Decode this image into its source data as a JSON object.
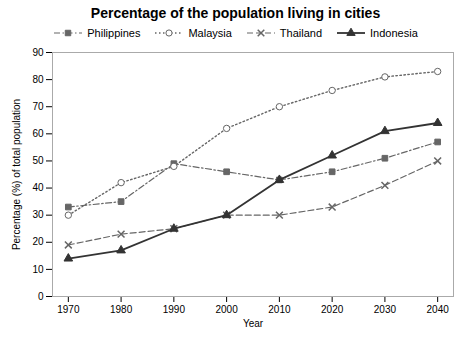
{
  "chart_data": {
    "type": "line",
    "title": "Percentage of the population living in cities",
    "xlabel": "Year",
    "ylabel": "Percentage (%) of total population",
    "x": [
      1970,
      1980,
      1990,
      2000,
      2010,
      2020,
      2030,
      2040
    ],
    "series": [
      {
        "name": "Philippines",
        "color": "#666666",
        "marker": "square",
        "line_style": "dashdot",
        "values": [
          33,
          35,
          49,
          46,
          43,
          46,
          51,
          57
        ]
      },
      {
        "name": "Malaysia",
        "color": "#666666",
        "marker": "circle",
        "line_style": "dotted",
        "values": [
          30,
          42,
          48,
          62,
          70,
          76,
          81,
          83
        ]
      },
      {
        "name": "Thailand",
        "color": "#666666",
        "marker": "x",
        "line_style": "dashed",
        "values": [
          19,
          23,
          25,
          30,
          30,
          33,
          41,
          50
        ]
      },
      {
        "name": "Indonesia",
        "color": "#333333",
        "marker": "triangle",
        "line_style": "solid",
        "values": [
          14,
          17,
          25,
          30,
          43,
          52,
          61,
          64
        ]
      }
    ],
    "xlim": [
      1967,
      2043
    ],
    "xticks": [
      1970,
      1980,
      1990,
      2000,
      2010,
      2020,
      2030,
      2040
    ],
    "ylim": [
      0,
      90
    ],
    "yticks": [
      0,
      10,
      20,
      30,
      40,
      50,
      60,
      70,
      80,
      90
    ],
    "grid": false,
    "legend": "top"
  }
}
